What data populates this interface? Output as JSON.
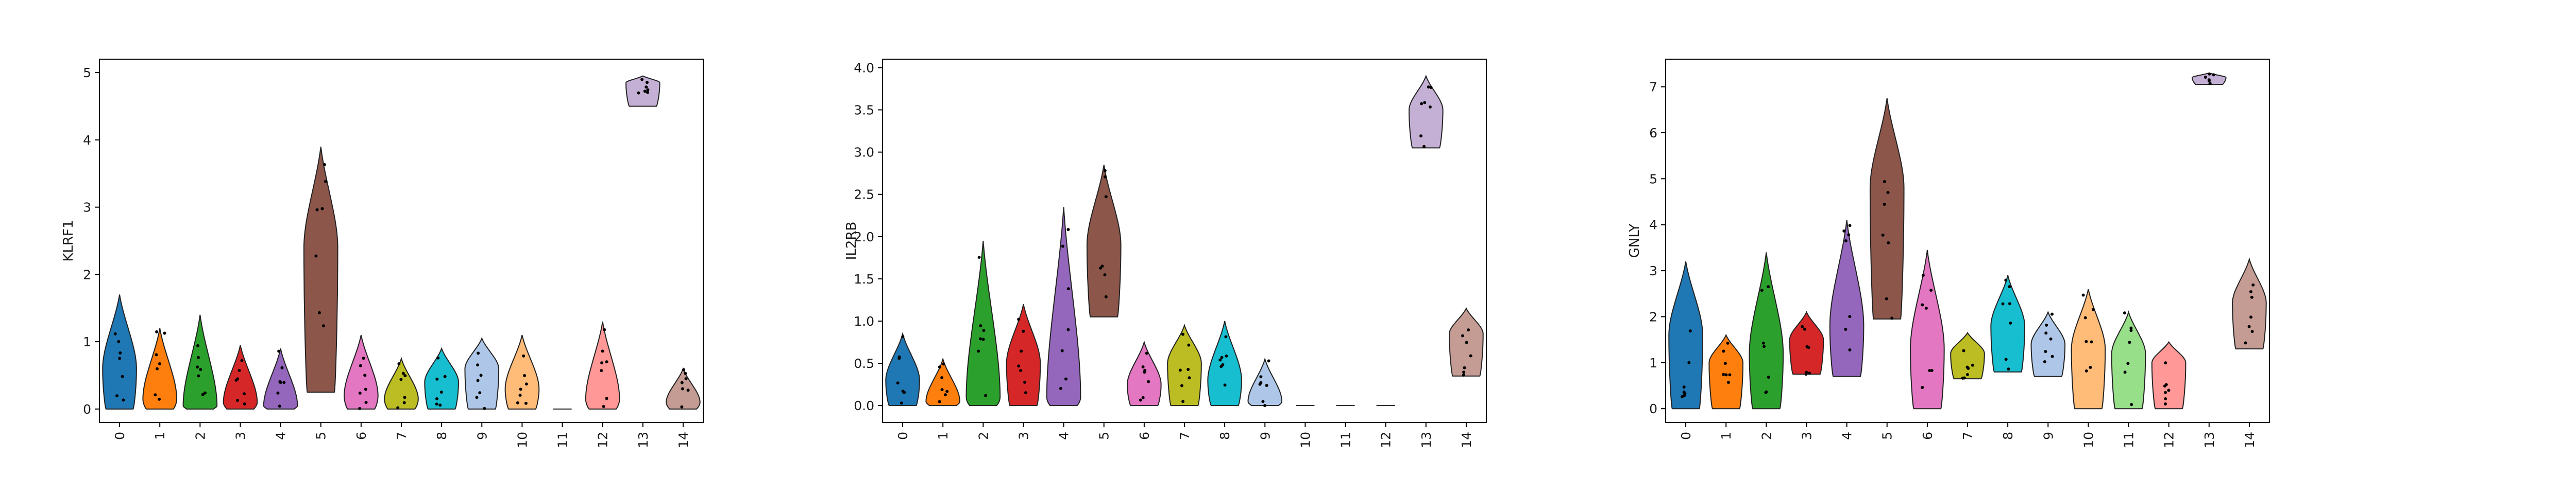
{
  "chart_data": [
    {
      "type": "violin",
      "ylabel": "KLRF1",
      "categories": [
        "0",
        "1",
        "2",
        "3",
        "4",
        "5",
        "6",
        "7",
        "8",
        "9",
        "10",
        "11",
        "12",
        "13",
        "14"
      ],
      "yticks": [
        "0",
        "1",
        "2",
        "3",
        "4",
        "5"
      ],
      "ylim": [
        -0.2,
        5.2
      ],
      "series": [
        {
          "category": "0",
          "color": "#1f77b4",
          "min": 0.0,
          "max": 1.7,
          "median": 0.6
        },
        {
          "category": "1",
          "color": "#ff7f0e",
          "min": 0.0,
          "max": 1.2,
          "median": 0.15
        },
        {
          "category": "2",
          "color": "#2ca02c",
          "min": 0.0,
          "max": 1.4,
          "median": 0.05
        },
        {
          "category": "3",
          "color": "#d62728",
          "min": 0.0,
          "max": 0.95,
          "median": 0.1
        },
        {
          "category": "4",
          "color": "#9467bd",
          "min": 0.0,
          "max": 0.9,
          "median": 0.05
        },
        {
          "category": "5",
          "color": "#8c564b",
          "min": 0.25,
          "max": 3.9,
          "median": 2.4
        },
        {
          "category": "6",
          "color": "#e377c2",
          "min": 0.0,
          "max": 1.1,
          "median": 0.2
        },
        {
          "category": "7",
          "color": "#bcbd22",
          "min": 0.0,
          "max": 0.75,
          "median": 0.15
        },
        {
          "category": "8",
          "color": "#17becf",
          "min": 0.0,
          "max": 0.9,
          "median": 0.4
        },
        {
          "category": "9",
          "color": "#aec7e8",
          "min": 0.0,
          "max": 1.05,
          "median": 0.6
        },
        {
          "category": "10",
          "color": "#ffbb78",
          "min": 0.0,
          "max": 1.1,
          "median": 0.3
        },
        {
          "category": "11",
          "color": "#98df8a",
          "min": 0.0,
          "max": 0.0,
          "median": 0.0
        },
        {
          "category": "12",
          "color": "#ff9896",
          "min": 0.0,
          "max": 1.3,
          "median": 0.15
        },
        {
          "category": "13",
          "color": "#c5b0d5",
          "min": 4.5,
          "max": 4.95,
          "median": 4.85
        },
        {
          "category": "14",
          "color": "#c49c94",
          "min": 0.0,
          "max": 0.6,
          "median": 0.1
        }
      ]
    },
    {
      "type": "violin",
      "ylabel": "IL2RB",
      "categories": [
        "0",
        "1",
        "2",
        "3",
        "4",
        "5",
        "6",
        "7",
        "8",
        "9",
        "10",
        "11",
        "12",
        "13",
        "14"
      ],
      "yticks": [
        "0.0",
        "0.5",
        "1.0",
        "1.5",
        "2.0",
        "2.5",
        "3.0",
        "3.5",
        "4.0"
      ],
      "ylim": [
        -0.2,
        4.1
      ],
      "series": [
        {
          "category": "0",
          "color": "#1f77b4",
          "min": 0.0,
          "max": 0.85,
          "median": 0.3
        },
        {
          "category": "1",
          "color": "#ff7f0e",
          "min": 0.0,
          "max": 0.55,
          "median": 0.05
        },
        {
          "category": "2",
          "color": "#2ca02c",
          "min": 0.0,
          "max": 1.95,
          "median": 0.1
        },
        {
          "category": "3",
          "color": "#d62728",
          "min": 0.0,
          "max": 1.2,
          "median": 0.5
        },
        {
          "category": "4",
          "color": "#9467bd",
          "min": 0.0,
          "max": 2.35,
          "median": 0.1
        },
        {
          "category": "5",
          "color": "#8c564b",
          "min": 1.05,
          "max": 2.85,
          "median": 1.9
        },
        {
          "category": "6",
          "color": "#e377c2",
          "min": 0.0,
          "max": 0.75,
          "median": 0.25
        },
        {
          "category": "7",
          "color": "#bcbd22",
          "min": 0.0,
          "max": 0.95,
          "median": 0.5
        },
        {
          "category": "8",
          "color": "#17becf",
          "min": 0.0,
          "max": 1.0,
          "median": 0.3
        },
        {
          "category": "9",
          "color": "#aec7e8",
          "min": 0.0,
          "max": 0.55,
          "median": 0.05
        },
        {
          "category": "10",
          "color": "#ffbb78",
          "min": 0.0,
          "max": 0.0,
          "median": 0.0
        },
        {
          "category": "11",
          "color": "#98df8a",
          "min": 0.0,
          "max": 0.0,
          "median": 0.0
        },
        {
          "category": "12",
          "color": "#ff9896",
          "min": 0.0,
          "max": 0.0,
          "median": 0.0
        },
        {
          "category": "13",
          "color": "#c5b0d5",
          "min": 3.05,
          "max": 3.9,
          "median": 3.5
        },
        {
          "category": "14",
          "color": "#c49c94",
          "min": 0.35,
          "max": 1.15,
          "median": 0.85
        }
      ]
    },
    {
      "type": "violin",
      "ylabel": "GNLY",
      "categories": [
        "0",
        "1",
        "2",
        "3",
        "4",
        "5",
        "6",
        "7",
        "8",
        "9",
        "10",
        "11",
        "12",
        "13",
        "14"
      ],
      "yticks": [
        "0",
        "1",
        "2",
        "3",
        "4",
        "5",
        "6",
        "7"
      ],
      "ylim": [
        -0.3,
        7.6
      ],
      "series": [
        {
          "category": "0",
          "color": "#1f77b4",
          "min": 0.0,
          "max": 3.2,
          "median": 1.6
        },
        {
          "category": "1",
          "color": "#ff7f0e",
          "min": 0.0,
          "max": 1.6,
          "median": 1.0
        },
        {
          "category": "2",
          "color": "#2ca02c",
          "min": 0.0,
          "max": 3.4,
          "median": 1.2
        },
        {
          "category": "3",
          "color": "#d62728",
          "min": 0.75,
          "max": 2.1,
          "median": 1.5
        },
        {
          "category": "4",
          "color": "#9467bd",
          "min": 0.7,
          "max": 4.1,
          "median": 1.8
        },
        {
          "category": "5",
          "color": "#8c564b",
          "min": 1.95,
          "max": 6.75,
          "median": 4.8
        },
        {
          "category": "6",
          "color": "#e377c2",
          "min": 0.0,
          "max": 3.45,
          "median": 1.3
        },
        {
          "category": "7",
          "color": "#bcbd22",
          "min": 0.65,
          "max": 1.65,
          "median": 1.2
        },
        {
          "category": "8",
          "color": "#17becf",
          "min": 0.8,
          "max": 2.9,
          "median": 1.8
        },
        {
          "category": "9",
          "color": "#aec7e8",
          "min": 0.7,
          "max": 2.1,
          "median": 1.4
        },
        {
          "category": "10",
          "color": "#ffbb78",
          "min": 0.0,
          "max": 2.6,
          "median": 1.3
        },
        {
          "category": "11",
          "color": "#98df8a",
          "min": 0.0,
          "max": 2.1,
          "median": 1.2
        },
        {
          "category": "12",
          "color": "#ff9896",
          "min": 0.0,
          "max": 1.45,
          "median": 1.0
        },
        {
          "category": "13",
          "color": "#c5b0d5",
          "min": 7.05,
          "max": 7.3,
          "median": 7.2
        },
        {
          "category": "14",
          "color": "#c49c94",
          "min": 1.3,
          "max": 3.25,
          "median": 2.3
        }
      ]
    }
  ]
}
